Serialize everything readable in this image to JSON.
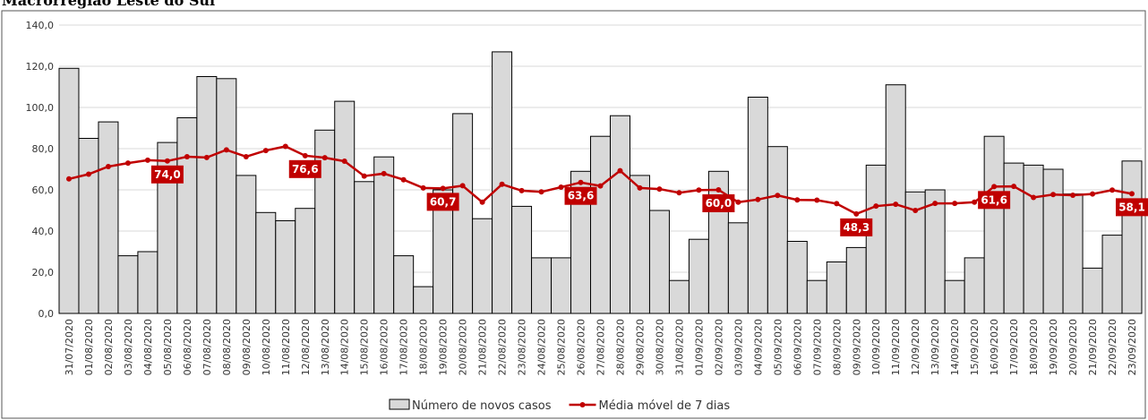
{
  "chart_data": {
    "type": "bar_line",
    "title": "Macrorregião Leste do Sul",
    "categories": [
      "31/07/2020",
      "01/08/2020",
      "02/08/2020",
      "03/08/2020",
      "04/08/2020",
      "05/08/2020",
      "06/08/2020",
      "07/08/2020",
      "08/08/2020",
      "09/08/2020",
      "10/08/2020",
      "11/08/2020",
      "12/08/2020",
      "13/08/2020",
      "14/08/2020",
      "15/08/2020",
      "16/08/2020",
      "17/08/2020",
      "18/08/2020",
      "19/08/2020",
      "20/08/2020",
      "21/08/2020",
      "22/08/2020",
      "23/08/2020",
      "24/08/2020",
      "25/08/2020",
      "26/08/2020",
      "27/08/2020",
      "28/08/2020",
      "29/08/2020",
      "30/08/2020",
      "31/08/2020",
      "01/09/2020",
      "02/09/2020",
      "03/09/2020",
      "04/09/2020",
      "05/09/2020",
      "06/09/2020",
      "07/09/2020",
      "08/09/2020",
      "09/09/2020",
      "10/09/2020",
      "11/09/2020",
      "12/09/2020",
      "13/09/2020",
      "14/09/2020",
      "15/09/2020",
      "16/09/2020",
      "17/09/2020",
      "18/09/2020",
      "19/09/2020",
      "20/09/2020",
      "21/09/2020",
      "22/09/2020",
      "23/09/2020"
    ],
    "series": [
      {
        "name": "Número de novos casos",
        "type": "bar",
        "color": "#d9d9d9",
        "values": [
          119,
          85,
          93,
          28,
          30,
          83,
          95,
          115,
          114,
          67,
          49,
          45,
          51,
          89,
          103,
          64,
          76,
          28,
          13,
          60,
          97,
          46,
          127,
          52,
          27,
          27,
          69,
          86,
          96,
          67,
          50,
          16,
          36,
          69,
          44,
          105,
          81,
          35,
          16,
          25,
          32,
          72,
          111,
          59,
          60,
          16,
          27,
          86,
          73,
          72,
          70,
          58,
          22,
          38,
          74
        ]
      },
      {
        "name": "Média móvel de 7 dias",
        "type": "line",
        "color": "#c00000",
        "values": [
          65.3,
          67.6,
          71.3,
          73.0,
          74.4,
          74.0,
          76.1,
          75.7,
          79.4,
          76.1,
          79.1,
          81.1,
          76.6,
          75.6,
          73.9,
          66.7,
          67.9,
          64.9,
          60.9,
          60.7,
          62.0,
          54.0,
          62.7,
          59.6,
          59.0,
          61.3,
          63.6,
          61.9,
          69.3,
          60.9,
          60.4,
          58.6,
          59.9,
          60.0,
          54.0,
          55.3,
          57.3,
          55.1,
          55.0,
          53.3,
          48.3,
          52.1,
          53.0,
          50.0,
          53.4,
          53.4,
          54.0,
          61.6,
          61.7,
          56.3,
          57.7,
          57.4,
          58.0,
          59.9,
          58.1
        ],
        "value_labels": [
          null,
          null,
          null,
          null,
          null,
          "74,0",
          null,
          null,
          null,
          null,
          null,
          null,
          "76,6",
          null,
          null,
          null,
          null,
          null,
          null,
          "60,7",
          null,
          null,
          null,
          null,
          null,
          null,
          "63,6",
          null,
          null,
          null,
          null,
          null,
          null,
          "60,0",
          null,
          null,
          null,
          null,
          null,
          null,
          "48,3",
          null,
          null,
          null,
          null,
          null,
          null,
          "61,6",
          null,
          null,
          null,
          null,
          null,
          null,
          "58,1"
        ]
      }
    ],
    "ylim": [
      0,
      140
    ],
    "yticks": [
      {
        "value": 0,
        "label": "0,0"
      },
      {
        "value": 20,
        "label": "20,0"
      },
      {
        "value": 40,
        "label": "40,0"
      },
      {
        "value": 60,
        "label": "60,0"
      },
      {
        "value": 80,
        "label": "80,0"
      },
      {
        "value": 100,
        "label": "100,0"
      },
      {
        "value": 120,
        "label": "120,0"
      },
      {
        "value": 140,
        "label": "140,0"
      }
    ],
    "grid": true,
    "legend": "bottom"
  }
}
